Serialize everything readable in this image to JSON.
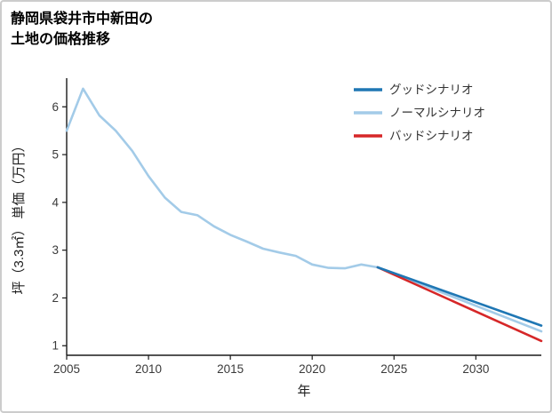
{
  "page": {
    "title_line1": "静岡県袋井市中新田の",
    "title_line2": "土地の価格推移"
  },
  "chart_data": {
    "type": "line",
    "title": "静岡県袋井市中新田の土地の価格推移",
    "xlabel": "年",
    "ylabel": "坪（3.3㎡） 単価（万円）",
    "xlim": [
      2005,
      2034
    ],
    "ylim": [
      0.8,
      6.6
    ],
    "xticks": [
      2005,
      2010,
      2015,
      2020,
      2025,
      2030
    ],
    "yticks": [
      1,
      2,
      3,
      4,
      5,
      6
    ],
    "grid": false,
    "legend_position": "top-right",
    "colors": {
      "axis": "#1a1a1a",
      "tick_label": "#3a3a3a"
    },
    "series": [
      {
        "key": "good",
        "name": "グッドシナリオ",
        "color": "#1f77b4",
        "in_legend": true,
        "x": [
          2024,
          2034
        ],
        "y": [
          2.64,
          1.42
        ]
      },
      {
        "key": "normal",
        "name": "ノーマルシナリオ",
        "color": "#a3cbe8",
        "in_legend": true,
        "x": [
          2005,
          2006,
          2007,
          2008,
          2009,
          2010,
          2011,
          2012,
          2013,
          2014,
          2015,
          2016,
          2017,
          2018,
          2019,
          2020,
          2021,
          2022,
          2023,
          2024,
          2034
        ],
        "y": [
          5.5,
          6.38,
          5.82,
          5.5,
          5.08,
          4.55,
          4.1,
          3.8,
          3.73,
          3.5,
          3.32,
          3.18,
          3.03,
          2.95,
          2.88,
          2.7,
          2.63,
          2.62,
          2.7,
          2.64,
          1.3
        ]
      },
      {
        "key": "bad",
        "name": "バッドシナリオ",
        "color": "#d62728",
        "in_legend": true,
        "x": [
          2024,
          2034
        ],
        "y": [
          2.64,
          1.1
        ]
      }
    ]
  }
}
